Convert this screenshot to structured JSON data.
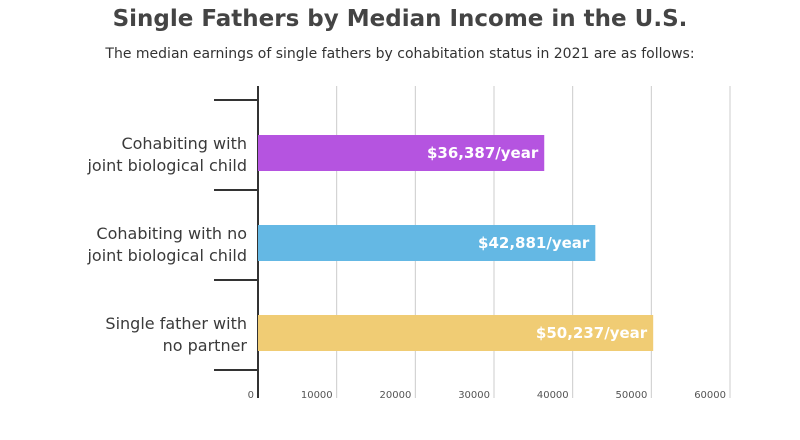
{
  "header": {
    "title": "Single Fathers by Median Income in the U.S.",
    "subtitle": "The median earnings of single fathers by cohabitation status in 2021 are as follows:"
  },
  "chart_data": {
    "type": "bar",
    "orientation": "horizontal",
    "title": "Single Fathers by Median Income in the U.S.",
    "subtitle": "The median earnings of single fathers by cohabitation status in 2021 are as follows:",
    "categories": [
      [
        "Cohabiting with",
        "joint biological child"
      ],
      [
        "Cohabiting with no",
        "joint biological child"
      ],
      [
        "Single father with",
        "no partner"
      ]
    ],
    "values": [
      36387,
      42881,
      50237
    ],
    "value_labels": [
      "$36,387/year",
      "$42,881/year",
      "$50,237/year"
    ],
    "colors": [
      "#b554e0",
      "#64b8e4",
      "#f0cc74"
    ],
    "xlim": [
      0,
      60000
    ],
    "xticks": [
      0,
      10000,
      20000,
      30000,
      40000,
      50000,
      60000
    ],
    "xtick_labels": [
      "0",
      "10000",
      "20000",
      "30000",
      "40000",
      "50000",
      "60000"
    ],
    "xlabel": "",
    "ylabel": "",
    "grid": true,
    "grid_color": "#cccccc",
    "axis_color": "#333333"
  }
}
